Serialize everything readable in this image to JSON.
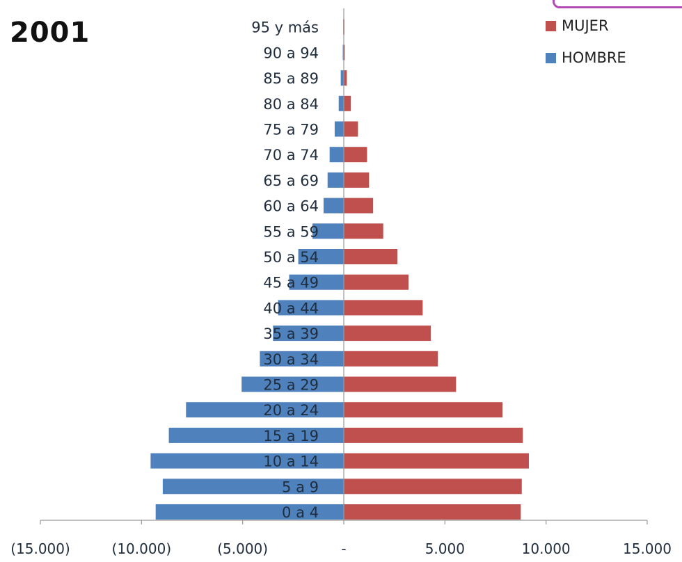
{
  "page": {
    "title": "2001"
  },
  "legend": {
    "items": [
      {
        "label": "MUJER",
        "color": "#c0504d"
      },
      {
        "label": "HOMBRE",
        "color": "#4f81bd"
      }
    ]
  },
  "chart_data": {
    "type": "bar",
    "orientation": "horizontal",
    "title": "2001",
    "categories": [
      "0 a 4",
      "5 a 9",
      "10 a 14",
      "15 a 19",
      "20 a 24",
      "25 a 29",
      "30 a 34",
      "35 a 39",
      "40 a 44",
      "45 a 49",
      "50 a 54",
      "55 a 59",
      "60 a 64",
      "65 a 69",
      "70 a 74",
      "75 a 79",
      "80 a 84",
      "85 a 89",
      "90 a 94",
      "95  y más"
    ],
    "series": [
      {
        "name": "MUJER",
        "color": "#c0504d",
        "values": [
          8750,
          8800,
          9150,
          8850,
          7850,
          5550,
          4650,
          4300,
          3900,
          3200,
          2650,
          1950,
          1450,
          1250,
          1150,
          700,
          350,
          150,
          50,
          30
        ]
      },
      {
        "name": "HOMBRE",
        "color": "#4f81bd",
        "values": [
          -9300,
          -8950,
          -9550,
          -8650,
          -7800,
          -5050,
          -4150,
          -3500,
          -3250,
          -2700,
          -2250,
          -1550,
          -1000,
          -800,
          -700,
          -450,
          -250,
          -150,
          -50,
          -30
        ]
      }
    ],
    "xlim": [
      -15000,
      15000
    ],
    "xticks": [
      -15000,
      -10000,
      -5000,
      0,
      5000,
      10000,
      15000
    ],
    "xtick_labels": [
      "(15.000)",
      "(10.000)",
      "(5.000)",
      "-",
      "5.000",
      "10.000",
      "15.000"
    ],
    "xlabel": "",
    "ylabel": "",
    "grid": false,
    "legend_position": "top-right"
  }
}
